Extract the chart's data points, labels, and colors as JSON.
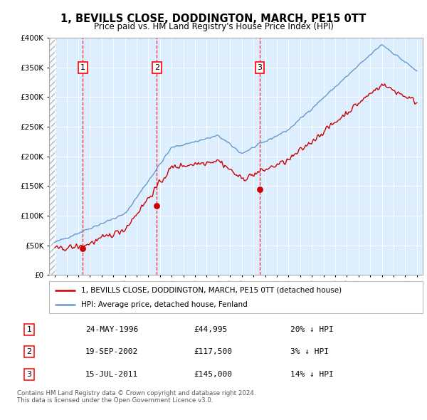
{
  "title": "1, BEVILLS CLOSE, DODDINGTON, MARCH, PE15 0TT",
  "subtitle": "Price paid vs. HM Land Registry's House Price Index (HPI)",
  "sales": [
    {
      "date": 1996.39,
      "price": 44995,
      "label": "1"
    },
    {
      "date": 2002.72,
      "price": 117500,
      "label": "2"
    },
    {
      "date": 2011.54,
      "price": 145000,
      "label": "3"
    }
  ],
  "legend_line1": "1, BEVILLS CLOSE, DODDINGTON, MARCH, PE15 0TT (detached house)",
  "legend_line2": "HPI: Average price, detached house, Fenland",
  "table": [
    {
      "num": "1",
      "date": "24-MAY-1996",
      "price": "£44,995",
      "hpi": "20% ↓ HPI"
    },
    {
      "num": "2",
      "date": "19-SEP-2002",
      "price": "£117,500",
      "hpi": "3% ↓ HPI"
    },
    {
      "num": "3",
      "date": "15-JUL-2011",
      "price": "£145,000",
      "hpi": "14% ↓ HPI"
    }
  ],
  "footer": "Contains HM Land Registry data © Crown copyright and database right 2024.\nThis data is licensed under the Open Government Licence v3.0.",
  "hpi_color": "#6699cc",
  "sold_color": "#cc0000",
  "bg_plot": "#ddeeff",
  "ylim": [
    0,
    400000
  ],
  "xlim_start": 1993.5,
  "xlim_end": 2025.5
}
